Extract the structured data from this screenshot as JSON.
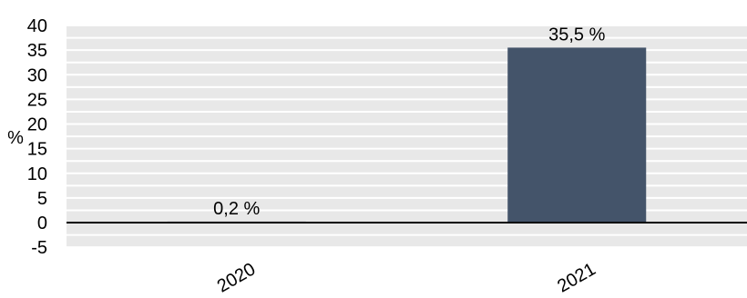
{
  "chart_data": {
    "type": "bar",
    "categories": [
      "2020",
      "2021"
    ],
    "values": [
      0.2,
      35.5
    ],
    "data_labels": [
      "0,2 %",
      "35,5 %"
    ],
    "ylabel": "%",
    "ylim": [
      -5,
      40
    ],
    "yticks": [
      40,
      35,
      30,
      25,
      20,
      15,
      10,
      5,
      0,
      -5
    ],
    "grid": true,
    "legend": "none",
    "colors": {
      "bar": "#44546a",
      "plot_background": "#e8e8e8",
      "gridline": "#ffffff",
      "zero_line": "#000000"
    }
  }
}
